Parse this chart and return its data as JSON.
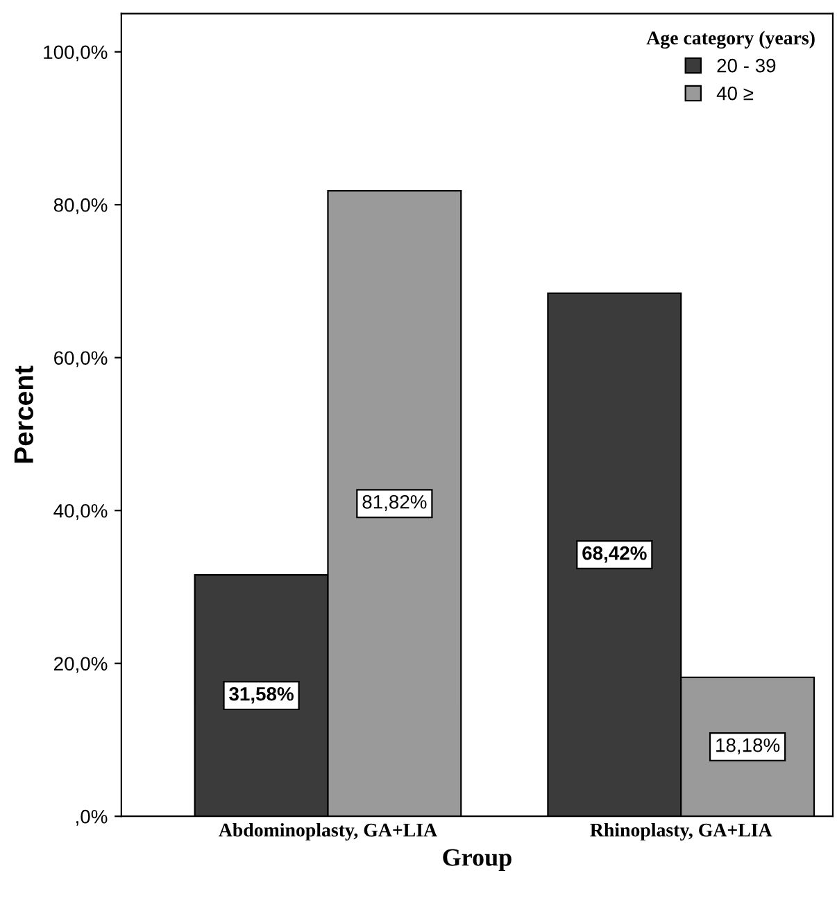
{
  "chart_data": {
    "type": "bar",
    "xlabel": "Group",
    "ylabel": "Percent",
    "legend_title": "Age category (years)",
    "categories": [
      "Abdominoplasty, GA+LIA",
      "Rhinoplasty, GA+LIA"
    ],
    "series": [
      {
        "name": "20 - 39",
        "color": "#3b3b3b",
        "values": [
          31.58,
          68.42
        ],
        "value_labels": [
          "31,58%",
          "68,42%"
        ]
      },
      {
        "name": "40 ≥",
        "color": "#9a9a9a",
        "values": [
          81.82,
          18.18
        ],
        "value_labels": [
          "81,82%",
          "18,18%"
        ]
      }
    ],
    "ylim": [
      0,
      105
    ],
    "yticks": [
      {
        "value": 0,
        "label": ",0%"
      },
      {
        "value": 20,
        "label": "20,0%"
      },
      {
        "value": 40,
        "label": "40,0%"
      },
      {
        "value": 60,
        "label": "60,0%"
      },
      {
        "value": 80,
        "label": "80,0%"
      },
      {
        "value": 100,
        "label": "100,0%"
      }
    ],
    "grid": false,
    "legend": "top right"
  }
}
